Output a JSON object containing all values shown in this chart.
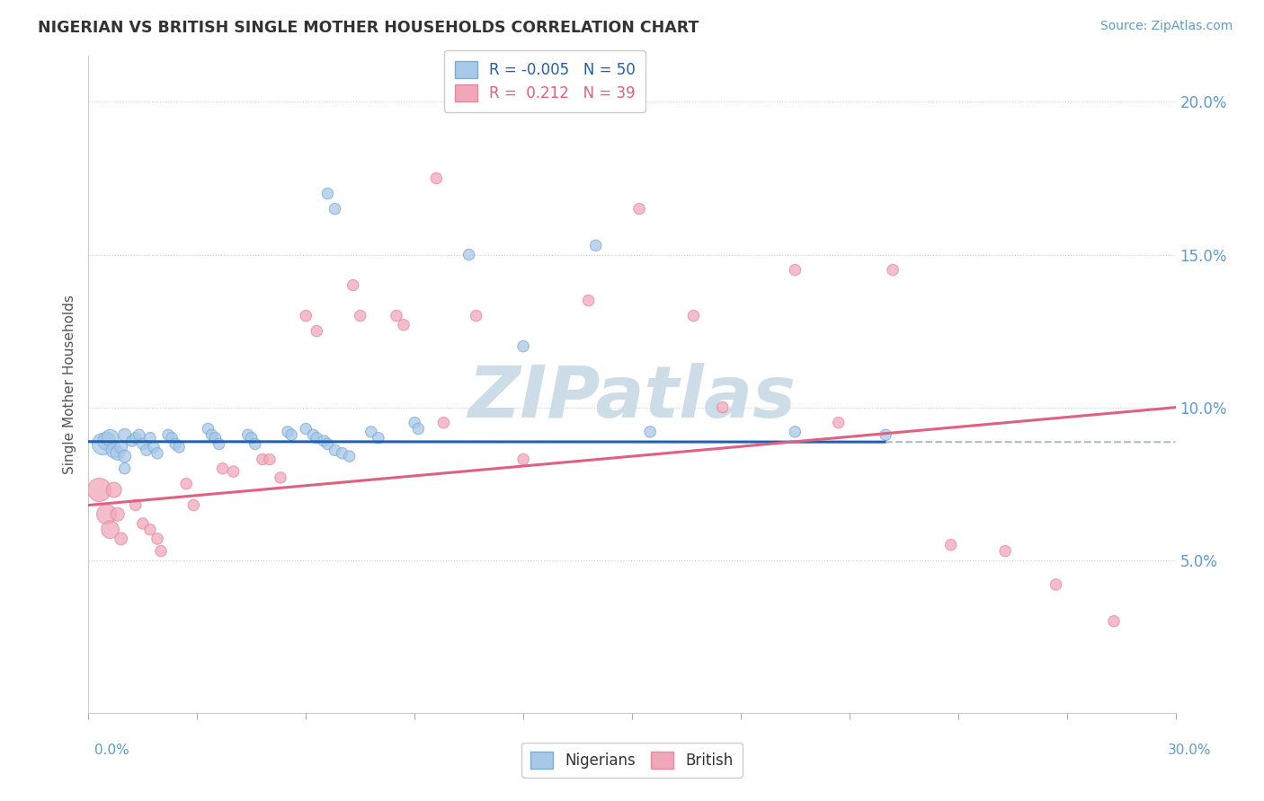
{
  "title": "NIGERIAN VS BRITISH SINGLE MOTHER HOUSEHOLDS CORRELATION CHART",
  "source": "Source: ZipAtlas.com",
  "ylabel": "Single Mother Households",
  "xlim": [
    0.0,
    0.3
  ],
  "ylim": [
    0.0,
    0.215
  ],
  "yticks": [
    0.05,
    0.1,
    0.15,
    0.2
  ],
  "ytick_labels": [
    "5.0%",
    "10.0%",
    "15.0%",
    "20.0%"
  ],
  "nigerian_R": "-0.005",
  "nigerian_N": "50",
  "british_R": "0.212",
  "british_N": "39",
  "nigerian_color": "#a8c8e8",
  "british_color": "#f0a8b8",
  "nigerian_edge_color": "#7aadd4",
  "british_edge_color": "#e888a8",
  "nigerian_line_color": "#2060b0",
  "british_line_color": "#e06080",
  "dashed_line_color": "#aabbcc",
  "watermark_color": "#d8e8f0",
  "nigerian_x": [
    0.004,
    0.005,
    0.006,
    0.007,
    0.008,
    0.009,
    0.01,
    0.01,
    0.01,
    0.012,
    0.013,
    0.014,
    0.015,
    0.016,
    0.017,
    0.018,
    0.019,
    0.022,
    0.023,
    0.024,
    0.025,
    0.033,
    0.034,
    0.035,
    0.036,
    0.044,
    0.045,
    0.046,
    0.055,
    0.056,
    0.066,
    0.068,
    0.078,
    0.08,
    0.09,
    0.091,
    0.105,
    0.12,
    0.14,
    0.155,
    0.195,
    0.22,
    0.06,
    0.062,
    0.063,
    0.065,
    0.066,
    0.068,
    0.07,
    0.072
  ],
  "nigerian_y": [
    0.088,
    0.089,
    0.09,
    0.086,
    0.085,
    0.087,
    0.091,
    0.084,
    0.08,
    0.089,
    0.09,
    0.091,
    0.088,
    0.086,
    0.09,
    0.087,
    0.085,
    0.091,
    0.09,
    0.088,
    0.087,
    0.093,
    0.091,
    0.09,
    0.088,
    0.091,
    0.09,
    0.088,
    0.092,
    0.091,
    0.17,
    0.165,
    0.092,
    0.09,
    0.095,
    0.093,
    0.15,
    0.12,
    0.153,
    0.092,
    0.092,
    0.091,
    0.093,
    0.091,
    0.09,
    0.089,
    0.088,
    0.086,
    0.085,
    0.084
  ],
  "british_x": [
    0.003,
    0.005,
    0.006,
    0.007,
    0.008,
    0.009,
    0.013,
    0.015,
    0.017,
    0.019,
    0.02,
    0.027,
    0.029,
    0.037,
    0.04,
    0.048,
    0.05,
    0.053,
    0.06,
    0.063,
    0.073,
    0.075,
    0.085,
    0.087,
    0.096,
    0.098,
    0.107,
    0.12,
    0.138,
    0.152,
    0.167,
    0.175,
    0.195,
    0.207,
    0.222,
    0.238,
    0.253,
    0.267,
    0.283
  ],
  "british_y": [
    0.073,
    0.065,
    0.06,
    0.073,
    0.065,
    0.057,
    0.068,
    0.062,
    0.06,
    0.057,
    0.053,
    0.075,
    0.068,
    0.08,
    0.079,
    0.083,
    0.083,
    0.077,
    0.13,
    0.125,
    0.14,
    0.13,
    0.13,
    0.127,
    0.175,
    0.095,
    0.13,
    0.083,
    0.135,
    0.165,
    0.13,
    0.1,
    0.145,
    0.095,
    0.145,
    0.055,
    0.053,
    0.042,
    0.03
  ],
  "nigerian_sizes": [
    300,
    200,
    180,
    150,
    120,
    100,
    100,
    100,
    80,
    80,
    80,
    80,
    80,
    80,
    80,
    80,
    80,
    80,
    80,
    80,
    80,
    80,
    80,
    80,
    80,
    80,
    80,
    80,
    80,
    80,
    80,
    80,
    80,
    80,
    80,
    80,
    80,
    80,
    80,
    80,
    80,
    80,
    80,
    80,
    80,
    80,
    80,
    80,
    80,
    80
  ],
  "british_sizes": [
    350,
    250,
    200,
    150,
    120,
    100,
    80,
    80,
    80,
    80,
    80,
    80,
    80,
    80,
    80,
    80,
    80,
    80,
    80,
    80,
    80,
    80,
    80,
    80,
    80,
    80,
    80,
    80,
    80,
    80,
    80,
    80,
    80,
    80,
    80,
    80,
    80,
    80,
    80
  ]
}
